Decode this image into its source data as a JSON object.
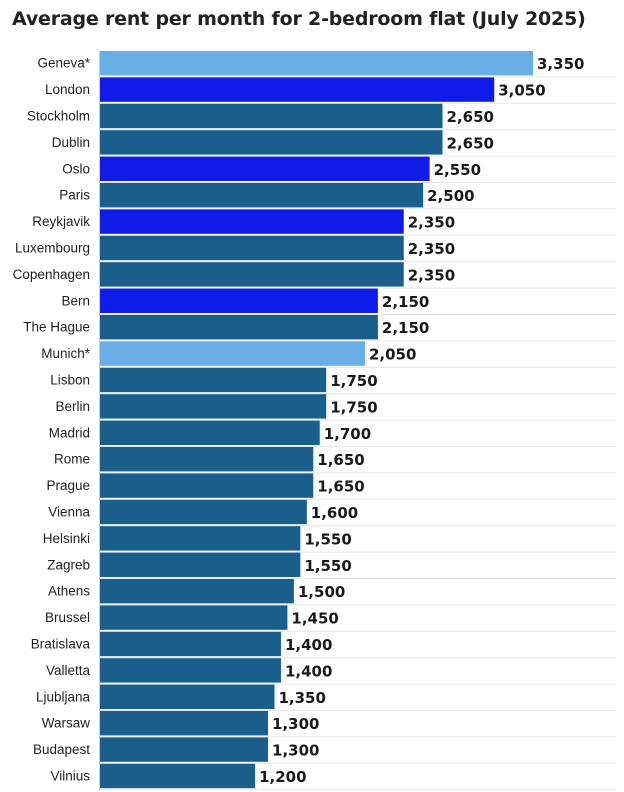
{
  "chart_data": {
    "type": "bar",
    "orientation": "horizontal",
    "title": "Average rent per month for 2-bedroom flat (July 2025)",
    "xlim": [
      0,
      3450
    ],
    "grid": true,
    "categories": [
      "Geneva*",
      "London",
      "Stockholm",
      "Dublin",
      "Oslo",
      "Paris",
      "Reykjavik",
      "Luxembourg",
      "Copenhagen",
      "Bern",
      "The Hague",
      "Munich*",
      "Lisbon",
      "Berlin",
      "Madrid",
      "Rome",
      "Prague",
      "Vienna",
      "Helsinki",
      "Zagreb",
      "Athens",
      "Brussel",
      "Bratislava",
      "Valletta",
      "Ljubljana",
      "Warsaw",
      "Budapest",
      "Vilnius"
    ],
    "values": [
      3350,
      3050,
      2650,
      2650,
      2550,
      2500,
      2350,
      2350,
      2350,
      2150,
      2150,
      2050,
      1750,
      1750,
      1700,
      1650,
      1650,
      1600,
      1550,
      1550,
      1500,
      1450,
      1400,
      1400,
      1350,
      1300,
      1300,
      1200
    ],
    "value_labels": [
      "3,350",
      "3,050",
      "2,650",
      "2,650",
      "2,550",
      "2,500",
      "2,350",
      "2,350",
      "2,350",
      "2,150",
      "2,150",
      "2,050",
      "1,750",
      "1,750",
      "1,700",
      "1,650",
      "1,650",
      "1,600",
      "1,550",
      "1,550",
      "1,500",
      "1,450",
      "1,400",
      "1,400",
      "1,350",
      "1,300",
      "1,300",
      "1,200"
    ],
    "bar_colors": [
      "#6aaee8",
      "#0f1be8",
      "#1a5f8c",
      "#1a5f8c",
      "#0f1be8",
      "#1a5f8c",
      "#0f1be8",
      "#1a5f8c",
      "#1a5f8c",
      "#0f1be8",
      "#1a5f8c",
      "#6aaee8",
      "#1a5f8c",
      "#1a5f8c",
      "#1a5f8c",
      "#1a5f8c",
      "#1a5f8c",
      "#1a5f8c",
      "#1a5f8c",
      "#1a5f8c",
      "#1a5f8c",
      "#1a5f8c",
      "#1a5f8c",
      "#1a5f8c",
      "#1a5f8c",
      "#1a5f8c",
      "#1a5f8c",
      "#1a5f8c"
    ]
  }
}
